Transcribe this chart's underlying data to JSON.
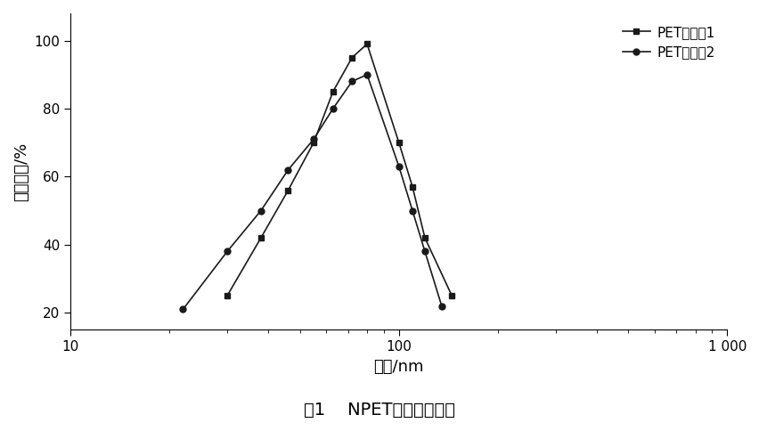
{
  "series1_label": "PET悬浮涵1",
  "series2_label": "PET悬浮涵2",
  "series1_x": [
    30,
    38,
    46,
    55,
    63,
    72,
    80,
    100,
    110,
    120,
    145
  ],
  "series1_y": [
    25,
    42,
    56,
    70,
    85,
    95,
    99,
    70,
    57,
    42,
    25
  ],
  "series2_x": [
    22,
    30,
    38,
    46,
    55,
    63,
    72,
    80,
    100,
    110,
    120,
    135
  ],
  "series2_y": [
    21,
    38,
    50,
    62,
    71,
    80,
    88,
    90,
    63,
    50,
    38,
    22
  ],
  "xlabel": "直径/nm",
  "ylabel": "粒径分布/%",
  "ylim": [
    15,
    108
  ],
  "yticks": [
    20,
    40,
    60,
    80,
    100
  ],
  "xlim_log": [
    10,
    1000
  ],
  "caption": "图1    NPET的粒径分布图",
  "line_color": "#1a1a1a",
  "background_color": "#ffffff",
  "legend_marker1": "s",
  "legend_marker2": "o",
  "marker_size": 5,
  "line_width": 1.2,
  "xtick_labels": [
    "10",
    "100",
    "1 000"
  ]
}
